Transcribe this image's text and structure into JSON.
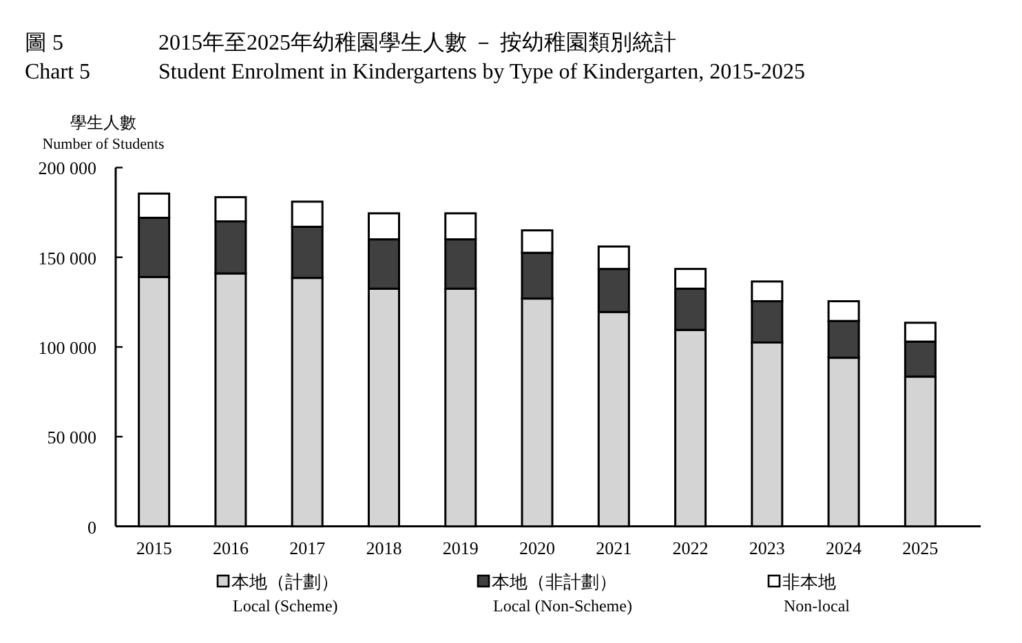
{
  "chart_data": {
    "type": "bar",
    "stacked": true,
    "title": "2015年至2025年幼稚園學生人數 － 按幼稚園類別統計",
    "subtitle": "Student Enrolment in Kindergartens by Type of Kindergarten, 2015-2025",
    "annotations": [
      "圖 5",
      "Chart 5"
    ],
    "ylabel": "學生人數\nNumber of Students",
    "categories": [
      "2015",
      "2016",
      "2017",
      "2018",
      "2019",
      "2020",
      "2021",
      "2022",
      "2023",
      "2024",
      "2025"
    ],
    "series": [
      {
        "name": "本地（計劃）\nLocal (Scheme)",
        "color": "#d4d4d4",
        "values": [
          139000,
          141000,
          138500,
          132500,
          132500,
          127000,
          119500,
          109500,
          102500,
          94000,
          83500
        ]
      },
      {
        "name": "本地（非計劃）\nLocal (Non-Scheme)",
        "color": "#404040",
        "values": [
          33000,
          29000,
          28500,
          27500,
          27500,
          25500,
          24000,
          23000,
          23000,
          20500,
          19500
        ]
      },
      {
        "name": "非本地\nNon-local",
        "color": "#ffffff",
        "values": [
          13500,
          13500,
          14000,
          14500,
          14500,
          12500,
          12500,
          11000,
          11000,
          11000,
          10500
        ]
      }
    ],
    "ylim": [
      0,
      200000
    ],
    "yticks": [
      0,
      {
        "value": 50000,
        "label": "50 000"
      },
      {
        "value": 100000,
        "label": "100 000"
      },
      {
        "value": 150000,
        "label": "150 000"
      },
      {
        "value": 200000,
        "label": "200 000"
      }
    ],
    "legend": "bottom"
  }
}
